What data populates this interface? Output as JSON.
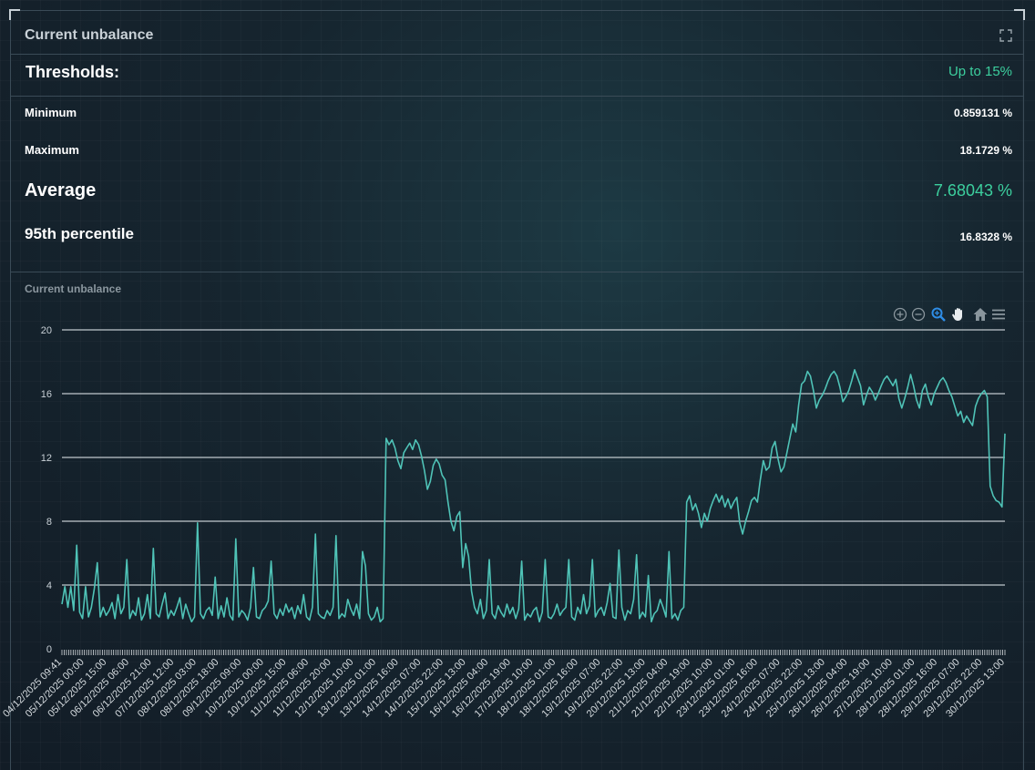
{
  "header": {
    "title": "Current unbalance"
  },
  "thresholds": {
    "label": "Thresholds:",
    "value": "Up to 15%"
  },
  "stats": {
    "minimum": {
      "label": "Minimum",
      "value": "0.859131 %"
    },
    "maximum": {
      "label": "Maximum",
      "value": "18.1729 %"
    },
    "average": {
      "label": "Average",
      "value": "7.68043 %"
    },
    "p95": {
      "label": "95th percentile",
      "value": "16.8328 %"
    }
  },
  "colors": {
    "accent": "#3ccf9e",
    "line": "#4fc3b7",
    "grid": "#c0c8cd"
  },
  "toolbar_icons": [
    "zoom-in-icon",
    "zoom-out-icon",
    "zoom-select-icon",
    "pan-icon",
    "home-icon",
    "menu-icon"
  ],
  "chart_data": {
    "type": "line",
    "title": "Current unbalance",
    "ylim": [
      0,
      20
    ],
    "yticks": [
      0,
      4,
      8,
      12,
      16,
      20
    ],
    "grid": true,
    "xticks": [
      "04/12/2025 09:41",
      "05/12/2025 00:00",
      "05/12/2025 15:00",
      "06/12/2025 06:00",
      "06/12/2025 21:00",
      "07/12/2025 12:00",
      "08/12/2025 03:00",
      "08/12/2025 18:00",
      "09/12/2025 09:00",
      "10/12/2025 00:00",
      "10/12/2025 15:00",
      "11/12/2025 06:00",
      "11/12/2025 20:00",
      "12/12/2025 10:00",
      "13/12/2025 01:00",
      "13/12/2025 16:00",
      "14/12/2025 07:00",
      "14/12/2025 22:00",
      "15/12/2025 13:00",
      "16/12/2025 04:00",
      "16/12/2025 19:00",
      "17/12/2025 10:00",
      "18/12/2025 01:00",
      "18/12/2025 16:00",
      "19/12/2025 07:00",
      "19/12/2025 22:00",
      "20/12/2025 13:00",
      "21/12/2025 04:00",
      "21/12/2025 19:00",
      "22/12/2025 10:00",
      "23/12/2025 01:00",
      "23/12/2025 16:00",
      "24/12/2025 07:00",
      "24/12/2025 22:00",
      "25/12/2025 13:00",
      "26/12/2025 04:00",
      "26/12/2025 19:00",
      "27/12/2025 10:00",
      "28/12/2025 01:00",
      "28/12/2025 16:00",
      "29/12/2025 07:00",
      "29/12/2025 22:00",
      "30/12/2025 13:00"
    ],
    "series": [
      {
        "values": [
          2.8,
          3.9,
          2.6,
          3.9,
          2.4,
          6.5,
          2.3,
          1.9,
          3.9,
          2.0,
          2.6,
          3.8,
          5.4,
          2.0,
          2.6,
          2.1,
          2.4,
          2.9,
          1.9,
          3.4,
          2.2,
          2.6,
          5.6,
          1.9,
          2.4,
          2.1,
          3.2,
          1.8,
          2.2,
          3.4,
          1.9,
          6.3,
          2.2,
          2.0,
          2.8,
          3.5,
          1.9,
          2.4,
          2.1,
          2.6,
          3.2,
          1.9,
          2.8,
          2.2,
          1.7,
          2.0,
          7.9,
          2.2,
          1.9,
          2.4,
          2.6,
          2.1,
          4.5,
          1.9,
          2.7,
          2.0,
          3.2,
          2.1,
          1.8,
          6.9,
          2.0,
          2.4,
          2.2,
          1.8,
          2.6,
          5.1,
          2.0,
          1.9,
          2.4,
          2.6,
          3.0,
          5.5,
          2.2,
          1.9,
          2.5,
          2.1,
          2.8,
          2.3,
          2.6,
          1.9,
          2.7,
          2.2,
          3.4,
          2.0,
          1.8,
          2.6,
          7.2,
          2.2,
          2.0,
          1.9,
          2.4,
          2.1,
          2.6,
          7.1,
          1.9,
          2.2,
          2.0,
          3.1,
          2.5,
          2.1,
          2.8,
          1.9,
          6.1,
          5.2,
          2.2,
          1.8,
          2.0,
          2.6,
          1.7,
          1.9,
          13.2,
          12.8,
          13.1,
          12.6,
          11.8,
          11.3,
          12.3,
          12.6,
          12.9,
          12.5,
          13.1,
          12.8,
          12.1,
          11.2,
          10.0,
          10.5,
          11.5,
          11.9,
          11.6,
          10.9,
          10.6,
          9.2,
          8.0,
          7.4,
          8.3,
          8.6,
          5.1,
          6.6,
          5.8,
          3.6,
          2.6,
          2.2,
          3.1,
          1.9,
          2.4,
          5.6,
          2.2,
          1.9,
          2.7,
          2.3,
          2.0,
          2.8,
          2.2,
          2.6,
          1.9,
          2.5,
          5.5,
          1.8,
          2.2,
          2.0,
          2.4,
          2.6,
          1.7,
          2.3,
          5.6,
          2.0,
          1.9,
          2.2,
          2.8,
          2.1,
          2.4,
          2.6,
          5.6,
          2.0,
          1.8,
          2.6,
          2.2,
          3.4,
          2.2,
          2.7,
          5.6,
          2.0,
          2.4,
          2.6,
          2.1,
          2.9,
          4.1,
          2.0,
          1.9,
          6.2,
          2.6,
          1.8,
          2.4,
          2.2,
          3.1,
          5.9,
          1.9,
          2.3,
          2.0,
          4.6,
          1.7,
          2.2,
          2.4,
          3.1,
          2.6,
          2.0,
          6.1,
          1.9,
          2.2,
          1.8,
          2.4,
          2.6,
          9.2,
          9.6,
          8.7,
          9.1,
          8.5,
          7.6,
          8.5,
          8.0,
          8.8,
          9.3,
          9.7,
          9.2,
          9.6,
          8.9,
          9.4,
          8.8,
          9.2,
          9.5,
          7.9,
          7.2,
          8.0,
          8.6,
          9.3,
          9.5,
          9.2,
          10.6,
          11.8,
          11.2,
          11.4,
          12.6,
          13.0,
          11.9,
          11.1,
          11.4,
          12.3,
          13.2,
          14.1,
          13.6,
          15.3,
          16.6,
          16.8,
          17.4,
          17.1,
          16.2,
          15.1,
          15.6,
          15.9,
          16.3,
          16.8,
          17.2,
          17.4,
          17.1,
          16.4,
          15.5,
          15.8,
          16.2,
          16.8,
          17.5,
          17.0,
          16.5,
          15.3,
          15.9,
          16.4,
          16.1,
          15.6,
          16.0,
          16.5,
          16.9,
          17.1,
          16.8,
          16.5,
          16.9,
          15.7,
          15.1,
          15.7,
          16.4,
          17.2,
          16.5,
          15.6,
          15.1,
          16.2,
          16.6,
          15.8,
          15.3,
          16.0,
          16.4,
          16.8,
          17.0,
          16.7,
          16.2,
          15.8,
          15.2,
          14.6,
          14.9,
          14.2,
          14.6,
          14.3,
          14.0,
          15.2,
          15.7,
          16.0,
          16.2,
          15.8,
          10.2,
          9.6,
          9.3,
          9.2,
          8.9,
          13.5
        ]
      }
    ]
  }
}
